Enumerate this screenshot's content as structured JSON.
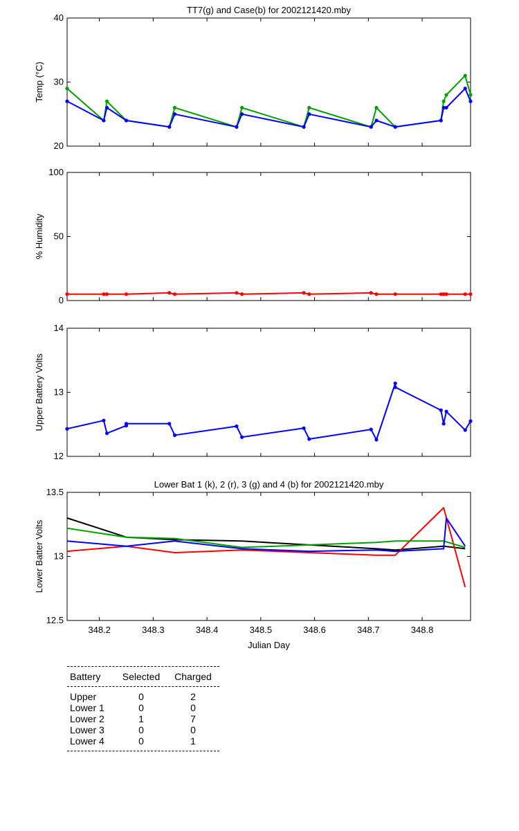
{
  "chart_data": [
    {
      "type": "line",
      "title": "TT7(g) and Case(b) for 2002121420.mby",
      "xlabel": "",
      "ylabel": "Temp  (°C)",
      "xlim": [
        348.14,
        348.89
      ],
      "ylim": [
        20,
        40
      ],
      "yticks": [
        20,
        30,
        40
      ],
      "xticks": [],
      "series": [
        {
          "color": "#00a000",
          "x": [
            348.14,
            348.208,
            348.214,
            348.25,
            348.33,
            348.34,
            348.455,
            348.465,
            348.58,
            348.59,
            348.705,
            348.715,
            348.75,
            348.835,
            348.84,
            348.845,
            348.88,
            348.89
          ],
          "y": [
            29,
            24,
            27,
            24,
            23,
            26,
            23,
            26,
            23,
            26,
            23,
            26,
            23,
            24,
            27,
            28,
            31,
            28
          ]
        },
        {
          "color": "#0000ff",
          "x": [
            348.14,
            348.208,
            348.214,
            348.25,
            348.33,
            348.34,
            348.455,
            348.465,
            348.58,
            348.59,
            348.705,
            348.715,
            348.75,
            348.835,
            348.84,
            348.845,
            348.88,
            348.89
          ],
          "y": [
            27,
            24,
            26,
            24,
            23,
            25,
            23,
            25,
            23,
            25,
            23,
            24,
            23,
            24,
            26,
            26,
            29,
            27
          ]
        }
      ]
    },
    {
      "type": "line",
      "title": "",
      "xlabel": "",
      "ylabel": "% Humidity",
      "xlim": [
        348.14,
        348.89
      ],
      "ylim": [
        0,
        100
      ],
      "yticks": [
        0,
        50,
        100
      ],
      "xticks": [],
      "series": [
        {
          "color": "#ff0000",
          "x": [
            348.14,
            348.208,
            348.214,
            348.25,
            348.33,
            348.34,
            348.455,
            348.465,
            348.58,
            348.59,
            348.705,
            348.715,
            348.75,
            348.835,
            348.84,
            348.845,
            348.88,
            348.89
          ],
          "y": [
            5,
            5,
            5,
            5,
            6,
            5,
            6,
            5,
            6,
            5,
            6,
            5,
            5,
            5,
            5,
            5,
            5,
            5
          ]
        }
      ]
    },
    {
      "type": "line",
      "title": "",
      "xlabel": "",
      "ylabel": "Upper Battery Volts",
      "xlim": [
        348.14,
        348.89
      ],
      "ylim": [
        12,
        14
      ],
      "yticks": [
        12,
        13,
        14
      ],
      "xticks": [],
      "series": [
        {
          "color": "#0000ff",
          "x": [
            348.14,
            348.208,
            348.214,
            348.25,
            348.25,
            348.33,
            348.34,
            348.455,
            348.465,
            348.58,
            348.59,
            348.705,
            348.715,
            348.75,
            348.75,
            348.835,
            348.84,
            348.845,
            348.88,
            348.89
          ],
          "y": [
            12.43,
            12.56,
            12.36,
            12.48,
            12.51,
            12.51,
            12.33,
            12.47,
            12.3,
            12.44,
            12.27,
            12.42,
            12.26,
            13.14,
            13.08,
            12.72,
            12.51,
            12.7,
            12.41,
            12.55
          ]
        }
      ]
    },
    {
      "type": "line",
      "title": "Lower Bat 1 (k), 2 (r), 3 (g) and 4 (b) for 2002121420.mby",
      "xlabel": "Julian Day",
      "ylabel": "Lower Batter Volts",
      "xlim": [
        348.14,
        348.89
      ],
      "ylim": [
        12.5,
        13.5
      ],
      "yticks": [
        12.5,
        13,
        13.5
      ],
      "xticks": [
        348.2,
        348.3,
        348.4,
        348.5,
        348.6,
        348.7,
        348.8
      ],
      "series": [
        {
          "color": "#000000",
          "x": [
            348.14,
            348.25,
            348.34,
            348.465,
            348.59,
            348.715,
            348.75,
            348.84,
            348.88
          ],
          "y": [
            13.3,
            13.15,
            13.13,
            13.12,
            13.09,
            13.06,
            13.05,
            13.08,
            13.06
          ]
        },
        {
          "color": "#ff0000",
          "x": [
            348.14,
            348.25,
            348.34,
            348.465,
            348.59,
            348.715,
            348.75,
            348.84,
            348.88
          ],
          "y": [
            13.04,
            13.08,
            13.03,
            13.05,
            13.03,
            13.01,
            13.01,
            13.38,
            12.76
          ]
        },
        {
          "color": "#00a000",
          "x": [
            348.14,
            348.25,
            348.34,
            348.465,
            348.59,
            348.715,
            348.75,
            348.84,
            348.88
          ],
          "y": [
            13.22,
            13.15,
            13.14,
            13.07,
            13.09,
            13.11,
            13.12,
            13.12,
            13.07
          ]
        },
        {
          "color": "#0000ff",
          "x": [
            348.14,
            348.25,
            348.34,
            348.465,
            348.59,
            348.715,
            348.75,
            348.84,
            348.845,
            348.88
          ],
          "y": [
            13.12,
            13.08,
            13.12,
            13.06,
            13.04,
            13.05,
            13.04,
            13.06,
            13.3,
            13.08
          ]
        }
      ]
    }
  ],
  "table": {
    "headers": [
      "Battery",
      "Selected",
      "Charged"
    ],
    "rows": [
      [
        "Upper",
        "0",
        "2"
      ],
      [
        "Lower 1",
        "0",
        "0"
      ],
      [
        "Lower 2",
        "1",
        "7"
      ],
      [
        "Lower 3",
        "0",
        "0"
      ],
      [
        "Lower 4",
        "0",
        "1"
      ]
    ]
  }
}
